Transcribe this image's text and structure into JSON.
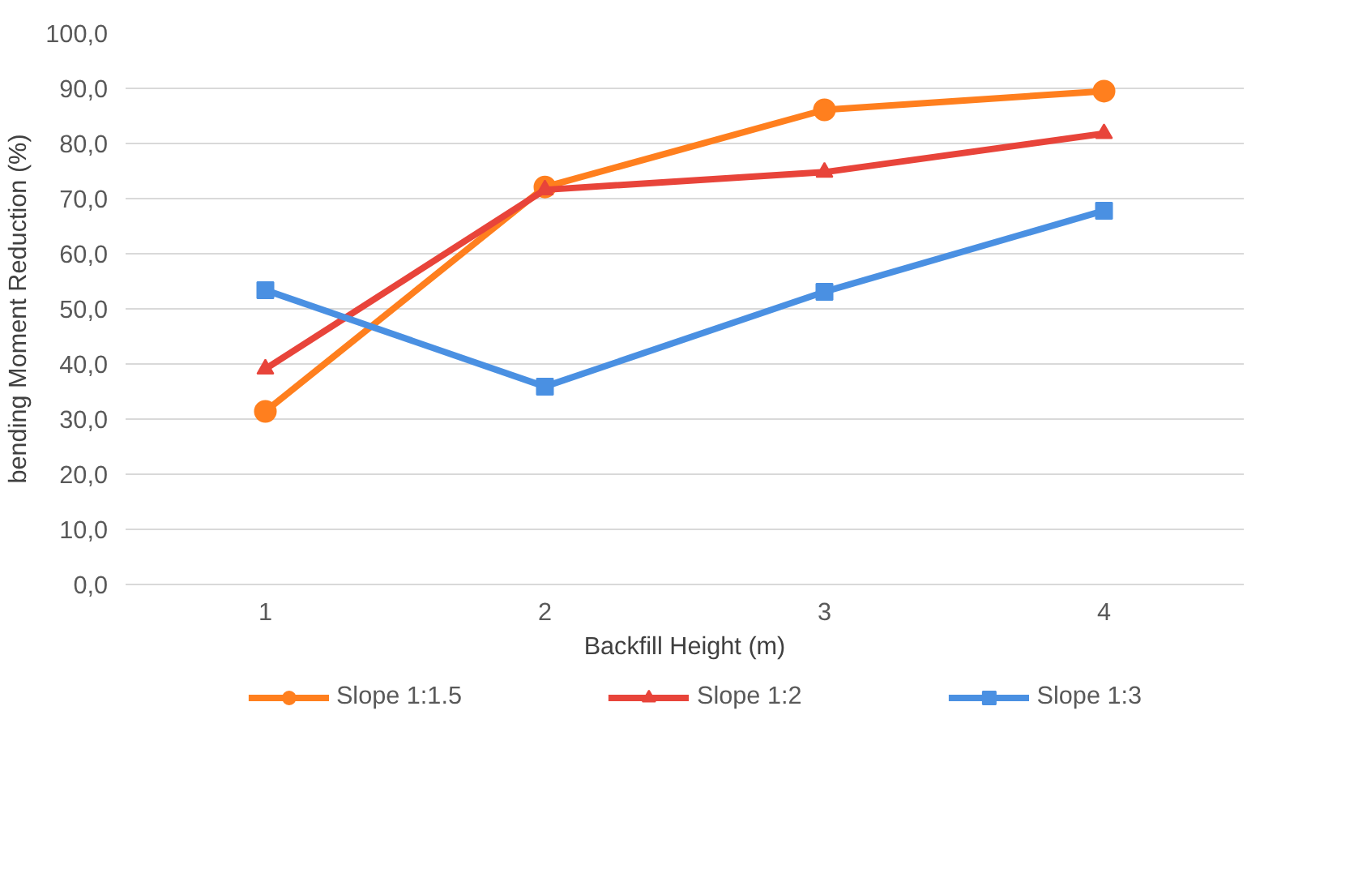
{
  "chart_data": {
    "type": "line",
    "xlabel": "Backfill Height (m)",
    "ylabel": "bending Moment Reduction (%)",
    "categories": [
      "1",
      "2",
      "3",
      "4"
    ],
    "ylim": [
      0,
      100
    ],
    "yticks": [
      {
        "value": 0,
        "label": "0,0"
      },
      {
        "value": 10,
        "label": "10,0"
      },
      {
        "value": 20,
        "label": "20,0"
      },
      {
        "value": 30,
        "label": "30,0"
      },
      {
        "value": 40,
        "label": "40,0"
      },
      {
        "value": 50,
        "label": "50,0"
      },
      {
        "value": 60,
        "label": "60,0"
      },
      {
        "value": 70,
        "label": "70,0"
      },
      {
        "value": 80,
        "label": "80,0"
      },
      {
        "value": 90,
        "label": "90,0"
      },
      {
        "value": 100,
        "label": "100,0"
      }
    ],
    "grid": "y",
    "legend": "bottom",
    "line_style": "solid",
    "series": [
      {
        "name": "Slope 1:1.5",
        "color": "#ff7f1e",
        "marker": "circle",
        "values": [
          31.4,
          72.1,
          86.1,
          89.5
        ]
      },
      {
        "name": "Slope 1:2",
        "color": "#e8443a",
        "marker": "triangle",
        "values": [
          39.1,
          71.6,
          74.8,
          81.8
        ]
      },
      {
        "name": "Slope 1:3",
        "color": "#4a90e2",
        "marker": "square",
        "values": [
          53.4,
          35.9,
          53.1,
          67.8
        ]
      }
    ]
  }
}
